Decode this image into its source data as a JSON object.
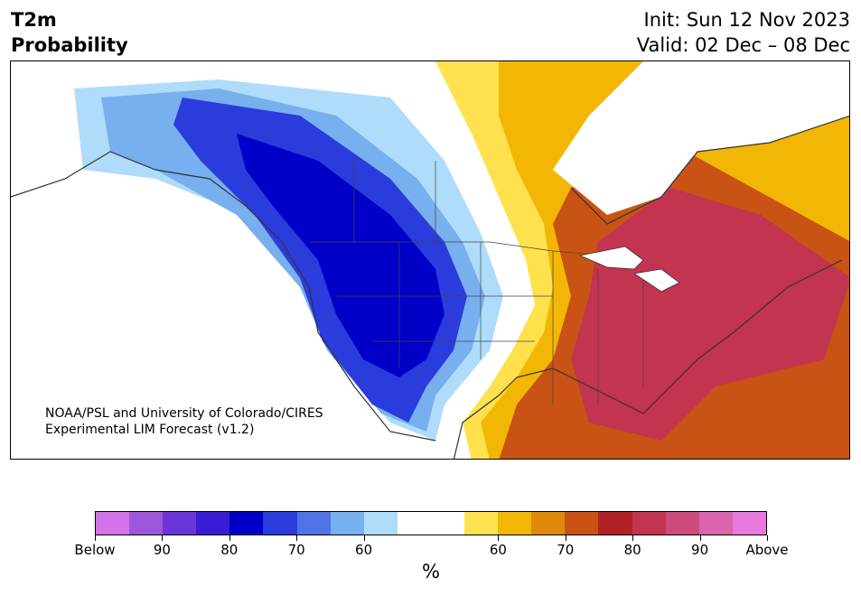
{
  "title": {
    "line1": "T2m",
    "line2": "Probability",
    "init": "Init: Sun 12 Nov 2023",
    "valid": "Valid: 02 Dec – 08 Dec"
  },
  "credit": {
    "line1": "NOAA/PSL and University of Colorado/CIRES",
    "line2": "Experimental LIM Forecast (v1.2)"
  },
  "colorbar": {
    "colors": [
      "#d472e8",
      "#9d56dc",
      "#6a35d8",
      "#3a1cd4",
      "#0000c8",
      "#2a3cdc",
      "#4f74e6",
      "#78afee",
      "#aedcfa",
      "#ffffff",
      "#ffffff",
      "#ffe14e",
      "#f2b705",
      "#df8a0b",
      "#c95314",
      "#b22222",
      "#c2344f",
      "#cf4a7c",
      "#dc64ad",
      "#e879dd"
    ],
    "ticks": [
      "Below",
      "90",
      "80",
      "70",
      "60",
      "60",
      "70",
      "80",
      "90",
      "Above"
    ],
    "unit": "%"
  },
  "map_colors": {
    "below_light": "#aedcfa",
    "below_mid": "#78afee",
    "below_strong": "#2a3cdc",
    "below_max": "#0000c8",
    "above_light": "#ffe14e",
    "above_mid": "#f2b705",
    "above_strong": "#c95314",
    "above_max": "#c2344f"
  }
}
